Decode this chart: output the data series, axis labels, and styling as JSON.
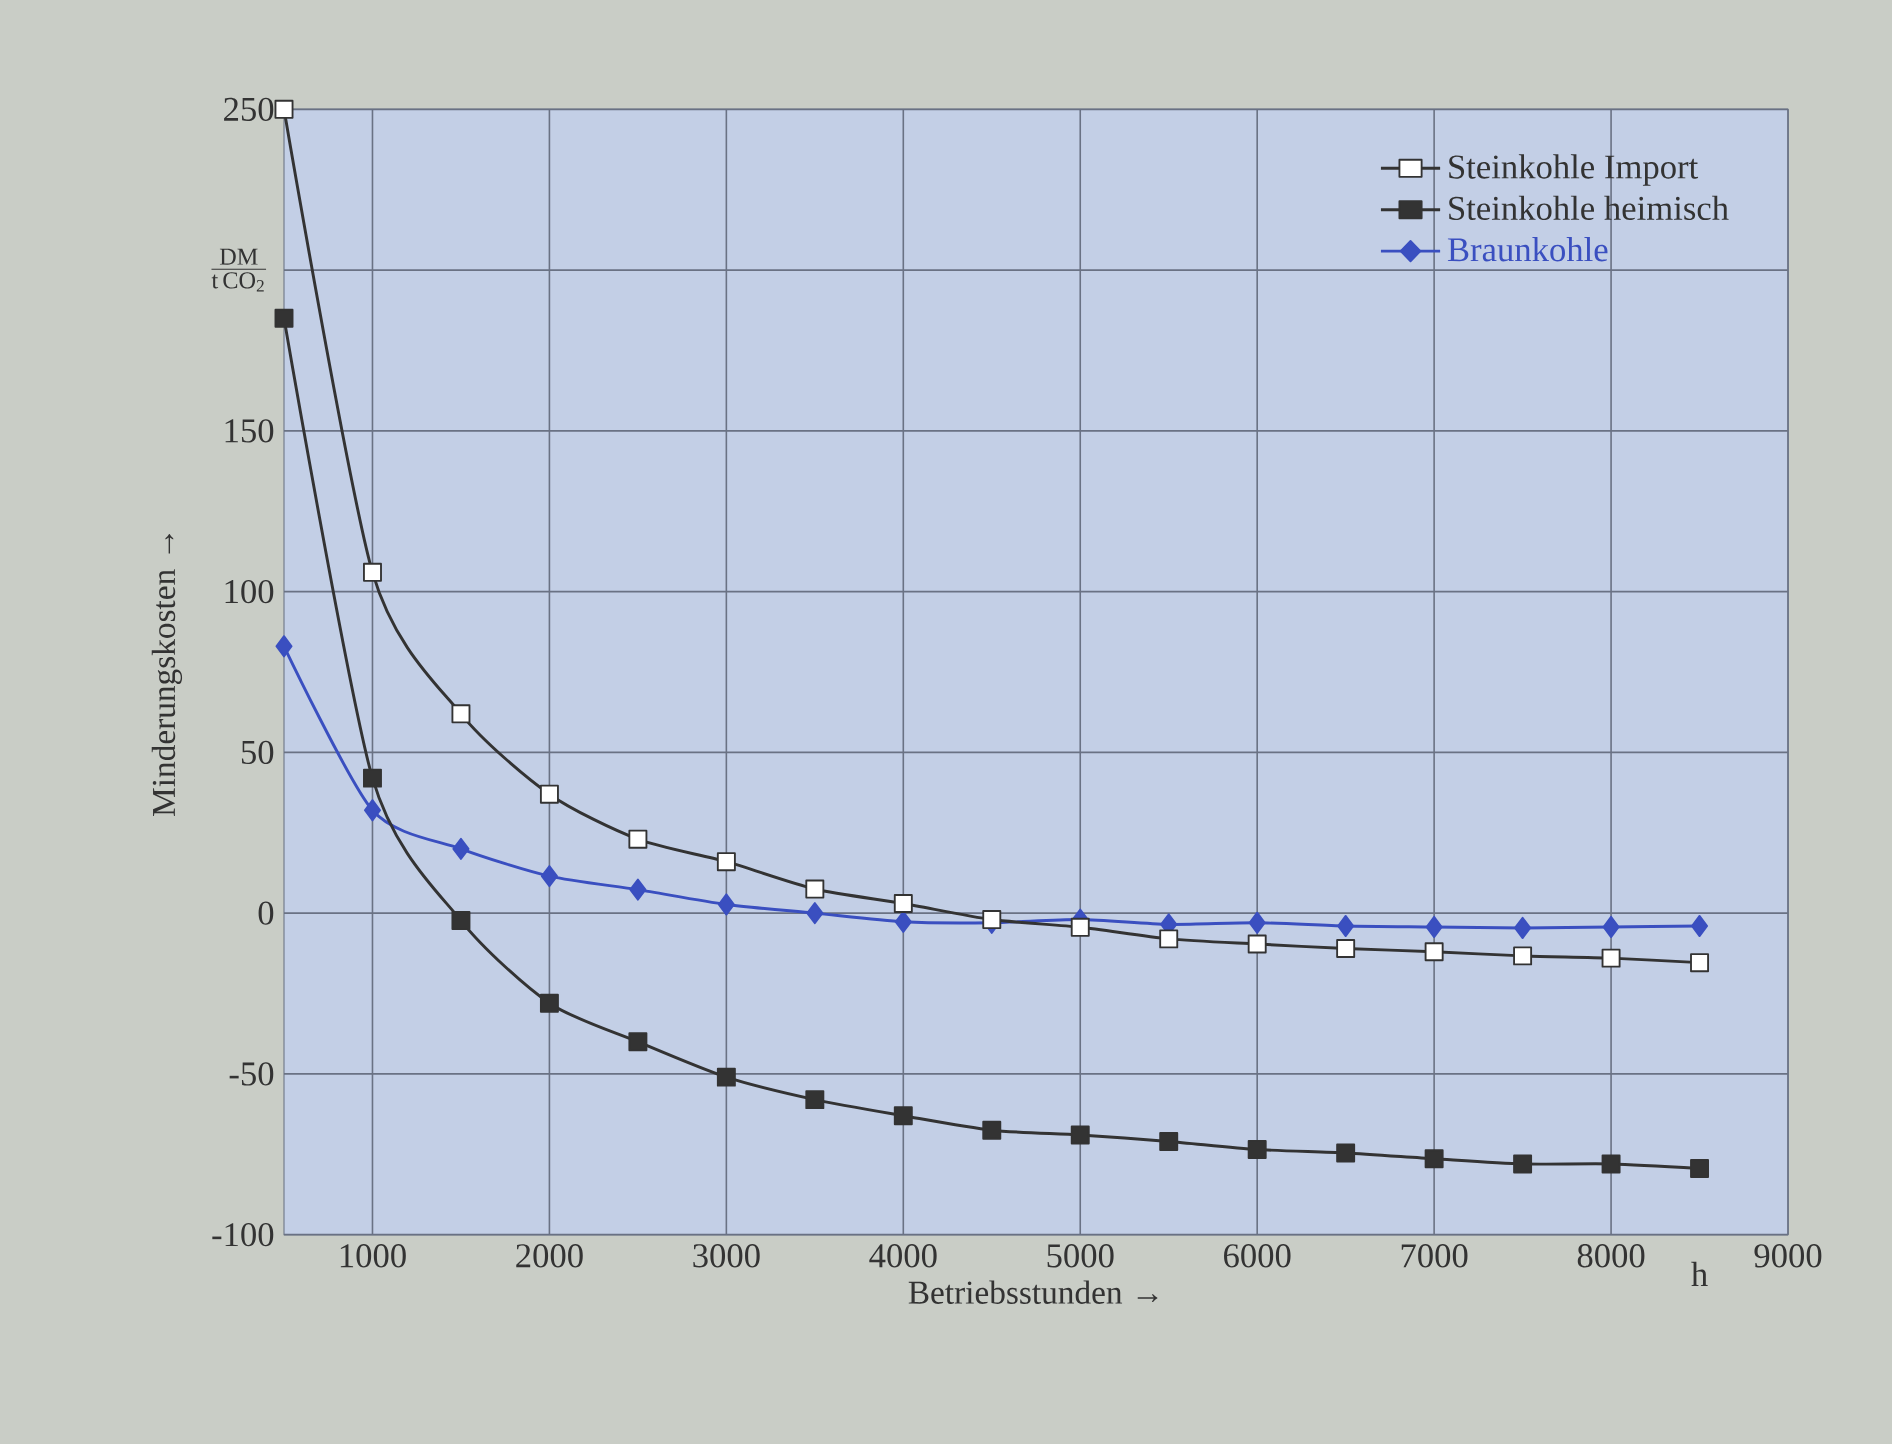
{
  "chart_data": {
    "type": "line",
    "xlabel": "Betriebsstunden →",
    "ylabel": "Minderungskosten →",
    "annotations": [
      "\\frac{\\mathrm{DM}}{\\mathrm{t\\,CO_2}}",
      "h"
    ],
    "x": [
      500,
      1000,
      1500,
      2000,
      2500,
      3000,
      3500,
      4000,
      4500,
      5000,
      5500,
      6000,
      6500,
      7000,
      7500,
      8000,
      8500
    ],
    "series": [
      {
        "name": "Steinkohle Import",
        "color": "#333333",
        "marker": "square",
        "values": [
          250,
          106,
          62,
          37,
          23,
          16,
          7.5,
          3,
          -2,
          -4.4,
          -8,
          -9.6,
          -11,
          -12,
          -13.3,
          -14,
          -15.4
        ]
      },
      {
        "name": "Steinkohle heimisch",
        "color": "#333333",
        "marker": "square",
        "values": [
          185,
          42,
          -2.3,
          -28,
          -40,
          -51,
          -58,
          -63,
          -67.5,
          -69,
          -71,
          -73.5,
          -74.6,
          -76.4,
          -78,
          -78,
          -79.4
        ]
      },
      {
        "name": "Braunkohle",
        "color": "#3a4fc0",
        "marker": "diamond",
        "values": [
          83,
          32,
          20,
          11.5,
          7.3,
          2.7,
          0,
          -2.7,
          -3,
          -2,
          -3.5,
          -3,
          -4,
          -4.3,
          -4.6,
          -4.3,
          -4
        ]
      }
    ],
    "xlim": [
      500,
      9000
    ],
    "xticks": [
      1000,
      2000,
      3000,
      4000,
      5000,
      6000,
      7000,
      8000,
      9000
    ],
    "ylim": [
      -100,
      250
    ],
    "yticks": [
      -100,
      -50,
      0,
      50,
      100,
      150,
      {
        "value": 200,
        "label": null
      },
      250
    ],
    "grid": true,
    "legend": "top right",
    "line_style": "solid"
  }
}
